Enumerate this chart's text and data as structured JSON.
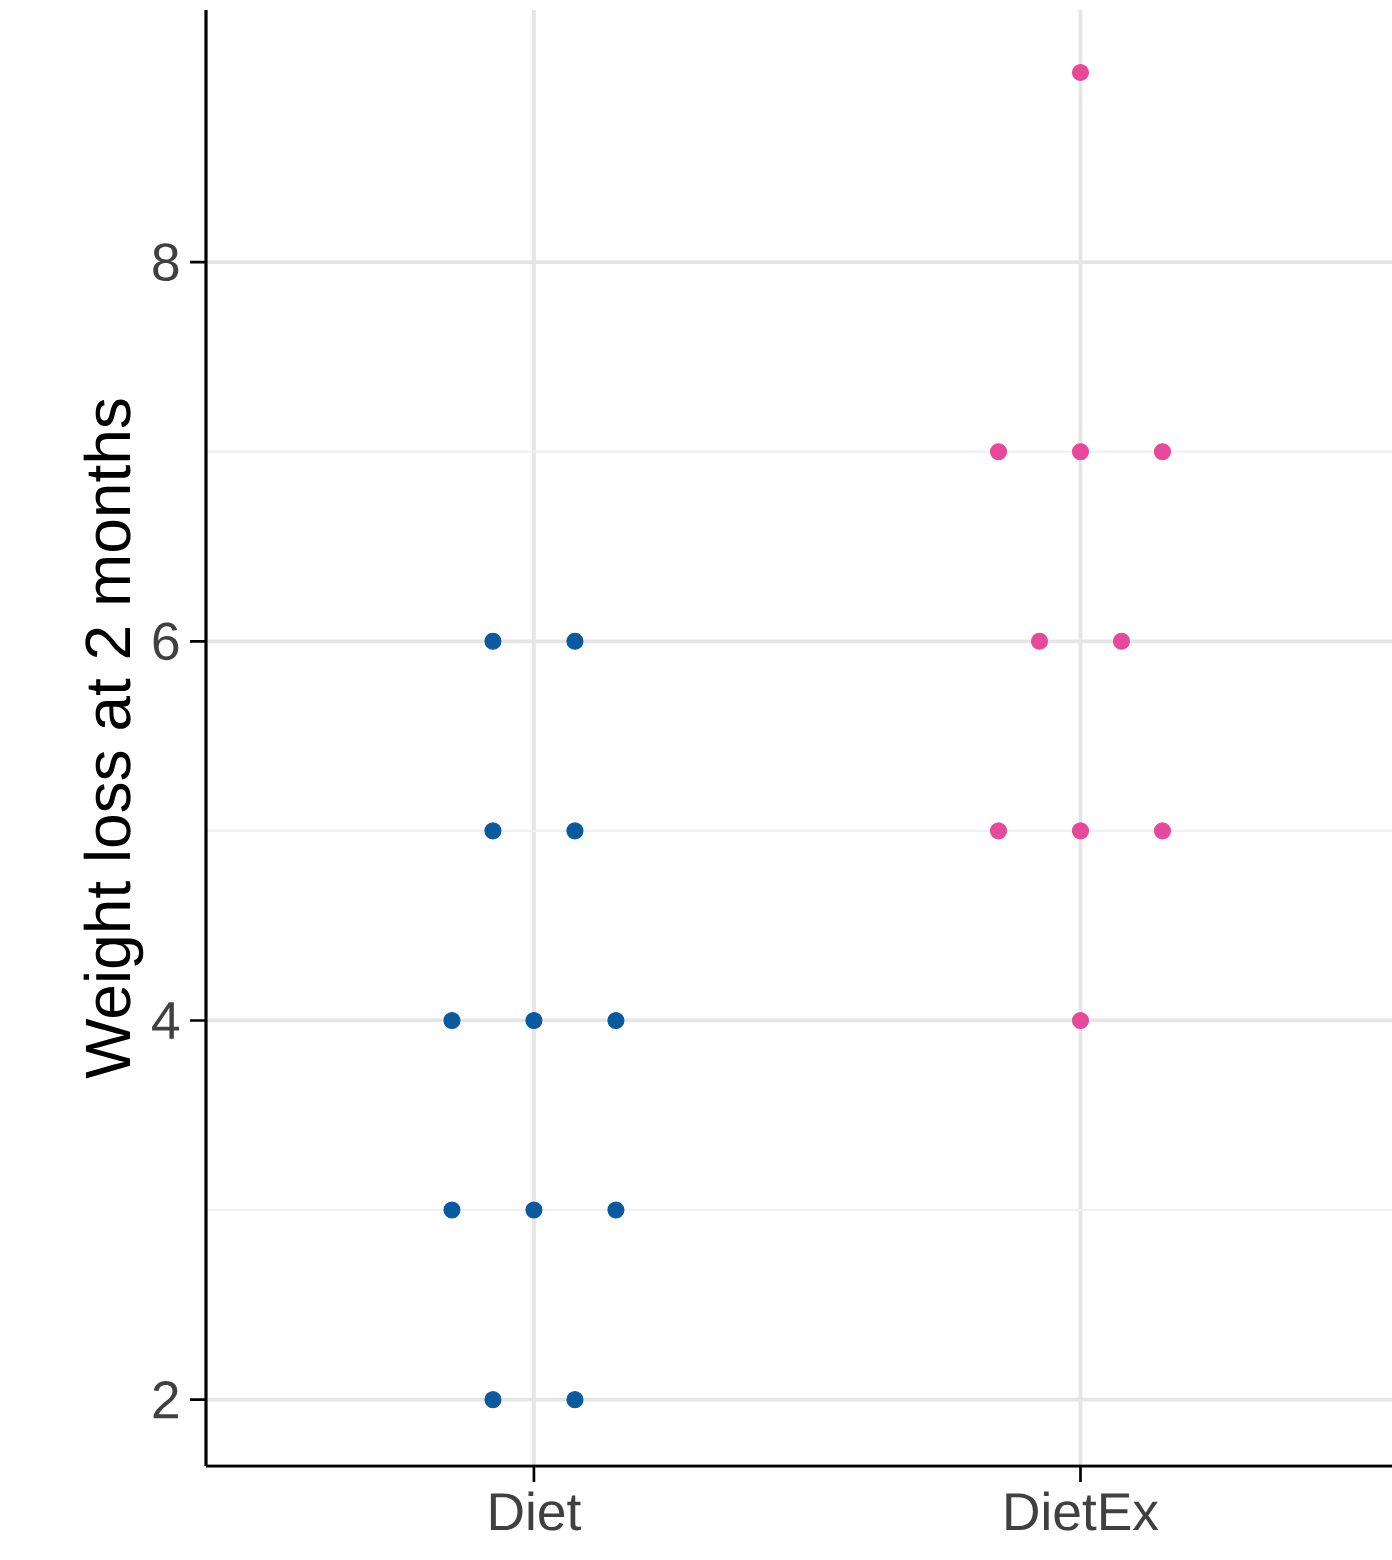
{
  "chart_data": {
    "type": "scatter",
    "ylabel": "Weight loss at 2 months",
    "categories": [
      "Diet",
      "DietEx"
    ],
    "ylim": [
      1.65,
      9.33
    ],
    "yticks": [
      2,
      4,
      6,
      8
    ],
    "grid": true,
    "series": [
      {
        "color": "#0a5aa0",
        "x": [
          "Diet",
          "Diet",
          "Diet",
          "Diet",
          "Diet",
          "Diet",
          "Diet",
          "Diet",
          "Diet",
          "Diet",
          "Diet",
          "Diet"
        ],
        "values": [
          6,
          6,
          5,
          5,
          4,
          4,
          4,
          3,
          3,
          3,
          2,
          2
        ]
      },
      {
        "color": "#e7489a",
        "x": [
          "DietEx",
          "DietEx",
          "DietEx",
          "DietEx",
          "DietEx",
          "DietEx",
          "DietEx",
          "DietEx",
          "DietEx",
          "DietEx"
        ],
        "values": [
          9,
          7,
          7,
          7,
          6,
          6,
          5,
          5,
          5,
          4
        ]
      }
    ]
  }
}
